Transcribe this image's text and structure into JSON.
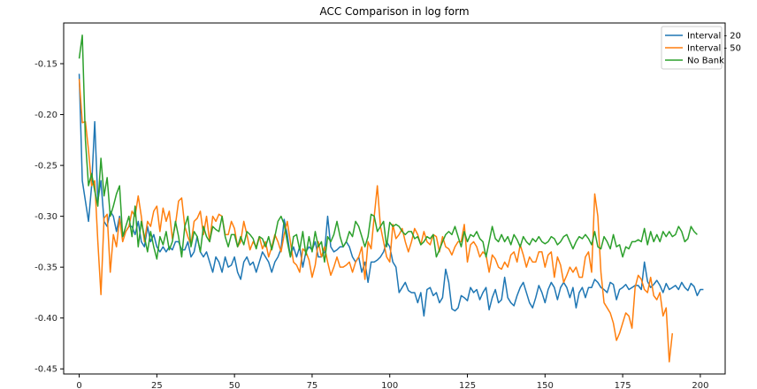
{
  "chart_data": {
    "type": "line",
    "title": "ACC Comparison in log form",
    "xlabel": "",
    "ylabel": "",
    "xlim": [
      -5,
      208
    ],
    "ylim": [
      -0.455,
      -0.11
    ],
    "x_ticks": [
      0,
      25,
      50,
      75,
      100,
      125,
      150,
      175,
      200
    ],
    "y_ticks": [
      -0.45,
      -0.4,
      -0.35,
      -0.3,
      -0.25,
      -0.2,
      -0.15
    ],
    "x_tick_labels": [
      "0",
      "25",
      "50",
      "75",
      "100",
      "125",
      "150",
      "175",
      "200"
    ],
    "y_tick_labels": [
      "-0.45",
      "-0.40",
      "-0.35",
      "-0.30",
      "-0.25",
      "-0.20",
      "-0.15"
    ],
    "grid": false,
    "legend_position": "top-right",
    "x_start": 0,
    "series": [
      {
        "name": "Interval - 20",
        "color": "#1f77b4",
        "values": [
          -0.16,
          -0.265,
          -0.285,
          -0.305,
          -0.27,
          -0.207,
          -0.285,
          -0.265,
          -0.305,
          -0.31,
          -0.295,
          -0.3,
          -0.315,
          -0.3,
          -0.32,
          -0.315,
          -0.31,
          -0.31,
          -0.318,
          -0.305,
          -0.325,
          -0.33,
          -0.31,
          -0.325,
          -0.318,
          -0.33,
          -0.335,
          -0.33,
          -0.335,
          -0.33,
          -0.333,
          -0.325,
          -0.325,
          -0.333,
          -0.333,
          -0.325,
          -0.34,
          -0.335,
          -0.32,
          -0.335,
          -0.34,
          -0.335,
          -0.345,
          -0.355,
          -0.34,
          -0.345,
          -0.355,
          -0.34,
          -0.35,
          -0.348,
          -0.34,
          -0.355,
          -0.362,
          -0.345,
          -0.34,
          -0.348,
          -0.345,
          -0.355,
          -0.345,
          -0.335,
          -0.34,
          -0.345,
          -0.355,
          -0.345,
          -0.34,
          -0.332,
          -0.303,
          -0.318,
          -0.34,
          -0.33,
          -0.34,
          -0.33,
          -0.35,
          -0.335,
          -0.33,
          -0.333,
          -0.325,
          -0.34,
          -0.34,
          -0.335,
          -0.3,
          -0.33,
          -0.335,
          -0.333,
          -0.33,
          -0.33,
          -0.325,
          -0.33,
          -0.34,
          -0.345,
          -0.34,
          -0.355,
          -0.345,
          -0.365,
          -0.345,
          -0.345,
          -0.343,
          -0.34,
          -0.335,
          -0.325,
          -0.33,
          -0.345,
          -0.35,
          -0.375,
          -0.37,
          -0.365,
          -0.373,
          -0.375,
          -0.375,
          -0.385,
          -0.375,
          -0.398,
          -0.372,
          -0.37,
          -0.378,
          -0.375,
          -0.385,
          -0.38,
          -0.352,
          -0.365,
          -0.391,
          -0.393,
          -0.39,
          -0.378,
          -0.38,
          -0.383,
          -0.37,
          -0.375,
          -0.372,
          -0.382,
          -0.375,
          -0.37,
          -0.392,
          -0.38,
          -0.372,
          -0.385,
          -0.382,
          -0.36,
          -0.38,
          -0.385,
          -0.388,
          -0.378,
          -0.37,
          -0.365,
          -0.375,
          -0.385,
          -0.39,
          -0.38,
          -0.368,
          -0.375,
          -0.385,
          -0.372,
          -0.365,
          -0.37,
          -0.382,
          -0.37,
          -0.365,
          -0.37,
          -0.38,
          -0.37,
          -0.39,
          -0.375,
          -0.37,
          -0.38,
          -0.37,
          -0.37,
          -0.362,
          -0.365,
          -0.37,
          -0.372,
          -0.375,
          -0.365,
          -0.367,
          -0.382,
          -0.372,
          -0.37,
          -0.367,
          -0.372,
          -0.37,
          -0.368,
          -0.368,
          -0.372,
          -0.345,
          -0.364,
          -0.37,
          -0.367,
          -0.363,
          -0.368,
          -0.375,
          -0.366,
          -0.372,
          -0.37,
          -0.368,
          -0.372,
          -0.365,
          -0.37,
          -0.373,
          -0.366,
          -0.369,
          -0.378,
          -0.372,
          -0.372
        ]
      },
      {
        "name": "Interval - 50",
        "color": "#ff7f0e",
        "values": [
          -0.165,
          -0.208,
          -0.207,
          -0.235,
          -0.27,
          -0.265,
          -0.325,
          -0.377,
          -0.302,
          -0.298,
          -0.355,
          -0.318,
          -0.33,
          -0.302,
          -0.325,
          -0.315,
          -0.31,
          -0.295,
          -0.3,
          -0.28,
          -0.3,
          -0.325,
          -0.305,
          -0.31,
          -0.295,
          -0.29,
          -0.315,
          -0.292,
          -0.305,
          -0.295,
          -0.322,
          -0.308,
          -0.285,
          -0.282,
          -0.31,
          -0.32,
          -0.328,
          -0.305,
          -0.302,
          -0.295,
          -0.318,
          -0.3,
          -0.325,
          -0.3,
          -0.305,
          -0.298,
          -0.3,
          -0.318,
          -0.318,
          -0.305,
          -0.312,
          -0.33,
          -0.325,
          -0.305,
          -0.318,
          -0.333,
          -0.325,
          -0.33,
          -0.32,
          -0.332,
          -0.325,
          -0.34,
          -0.33,
          -0.318,
          -0.325,
          -0.335,
          -0.318,
          -0.305,
          -0.325,
          -0.345,
          -0.348,
          -0.355,
          -0.332,
          -0.335,
          -0.343,
          -0.36,
          -0.348,
          -0.325,
          -0.34,
          -0.33,
          -0.345,
          -0.358,
          -0.35,
          -0.34,
          -0.35,
          -0.35,
          -0.348,
          -0.345,
          -0.355,
          -0.345,
          -0.34,
          -0.33,
          -0.362,
          -0.325,
          -0.332,
          -0.3,
          -0.27,
          -0.31,
          -0.325,
          -0.34,
          -0.345,
          -0.308,
          -0.322,
          -0.318,
          -0.312,
          -0.325,
          -0.335,
          -0.325,
          -0.312,
          -0.318,
          -0.328,
          -0.315,
          -0.325,
          -0.328,
          -0.318,
          -0.32,
          -0.335,
          -0.32,
          -0.33,
          -0.332,
          -0.338,
          -0.33,
          -0.325,
          -0.325,
          -0.308,
          -0.345,
          -0.328,
          -0.325,
          -0.33,
          -0.34,
          -0.335,
          -0.338,
          -0.355,
          -0.338,
          -0.342,
          -0.35,
          -0.352,
          -0.345,
          -0.35,
          -0.338,
          -0.335,
          -0.345,
          -0.328,
          -0.338,
          -0.35,
          -0.34,
          -0.345,
          -0.345,
          -0.335,
          -0.335,
          -0.35,
          -0.338,
          -0.335,
          -0.36,
          -0.34,
          -0.348,
          -0.365,
          -0.358,
          -0.35,
          -0.355,
          -0.35,
          -0.36,
          -0.36,
          -0.34,
          -0.335,
          -0.355,
          -0.278,
          -0.3,
          -0.355,
          -0.385,
          -0.39,
          -0.395,
          -0.405,
          -0.422,
          -0.415,
          -0.405,
          -0.395,
          -0.398,
          -0.41,
          -0.37,
          -0.358,
          -0.362,
          -0.372,
          -0.375,
          -0.36,
          -0.378,
          -0.382,
          -0.375,
          -0.398,
          -0.39,
          -0.443,
          -0.415
        ]
      },
      {
        "name": "No Bank",
        "color": "#2ca02c",
        "values": [
          -0.145,
          -0.122,
          -0.225,
          -0.27,
          -0.258,
          -0.275,
          -0.29,
          -0.243,
          -0.28,
          -0.262,
          -0.3,
          -0.29,
          -0.278,
          -0.27,
          -0.32,
          -0.31,
          -0.3,
          -0.32,
          -0.29,
          -0.33,
          -0.305,
          -0.32,
          -0.335,
          -0.315,
          -0.33,
          -0.342,
          -0.32,
          -0.328,
          -0.315,
          -0.333,
          -0.325,
          -0.305,
          -0.32,
          -0.34,
          -0.31,
          -0.3,
          -0.33,
          -0.315,
          -0.32,
          -0.335,
          -0.31,
          -0.32,
          -0.325,
          -0.31,
          -0.313,
          -0.315,
          -0.3,
          -0.32,
          -0.33,
          -0.318,
          -0.318,
          -0.33,
          -0.32,
          -0.328,
          -0.315,
          -0.318,
          -0.322,
          -0.332,
          -0.32,
          -0.322,
          -0.33,
          -0.32,
          -0.333,
          -0.32,
          -0.305,
          -0.3,
          -0.308,
          -0.325,
          -0.34,
          -0.32,
          -0.318,
          -0.333,
          -0.315,
          -0.338,
          -0.32,
          -0.335,
          -0.315,
          -0.33,
          -0.325,
          -0.345,
          -0.32,
          -0.325,
          -0.318,
          -0.305,
          -0.32,
          -0.33,
          -0.325,
          -0.315,
          -0.32,
          -0.305,
          -0.31,
          -0.32,
          -0.33,
          -0.32,
          -0.298,
          -0.3,
          -0.315,
          -0.31,
          -0.305,
          -0.33,
          -0.306,
          -0.31,
          -0.308,
          -0.31,
          -0.315,
          -0.318,
          -0.315,
          -0.315,
          -0.322,
          -0.32,
          -0.328,
          -0.325,
          -0.32,
          -0.322,
          -0.318,
          -0.34,
          -0.333,
          -0.325,
          -0.318,
          -0.315,
          -0.318,
          -0.31,
          -0.32,
          -0.33,
          -0.315,
          -0.325,
          -0.318,
          -0.32,
          -0.315,
          -0.322,
          -0.325,
          -0.34,
          -0.325,
          -0.31,
          -0.322,
          -0.325,
          -0.318,
          -0.325,
          -0.32,
          -0.328,
          -0.318,
          -0.323,
          -0.33,
          -0.32,
          -0.325,
          -0.328,
          -0.322,
          -0.325,
          -0.32,
          -0.325,
          -0.327,
          -0.325,
          -0.32,
          -0.322,
          -0.328,
          -0.325,
          -0.32,
          -0.318,
          -0.325,
          -0.332,
          -0.325,
          -0.32,
          -0.322,
          -0.318,
          -0.322,
          -0.328,
          -0.315,
          -0.33,
          -0.332,
          -0.32,
          -0.325,
          -0.332,
          -0.318,
          -0.33,
          -0.328,
          -0.34,
          -0.33,
          -0.332,
          -0.325,
          -0.325,
          -0.323,
          -0.325,
          -0.312,
          -0.328,
          -0.315,
          -0.325,
          -0.318,
          -0.325,
          -0.315,
          -0.32,
          -0.315,
          -0.32,
          -0.318,
          -0.31,
          -0.315,
          -0.325,
          -0.322,
          -0.31,
          -0.315,
          -0.318
        ]
      }
    ]
  }
}
